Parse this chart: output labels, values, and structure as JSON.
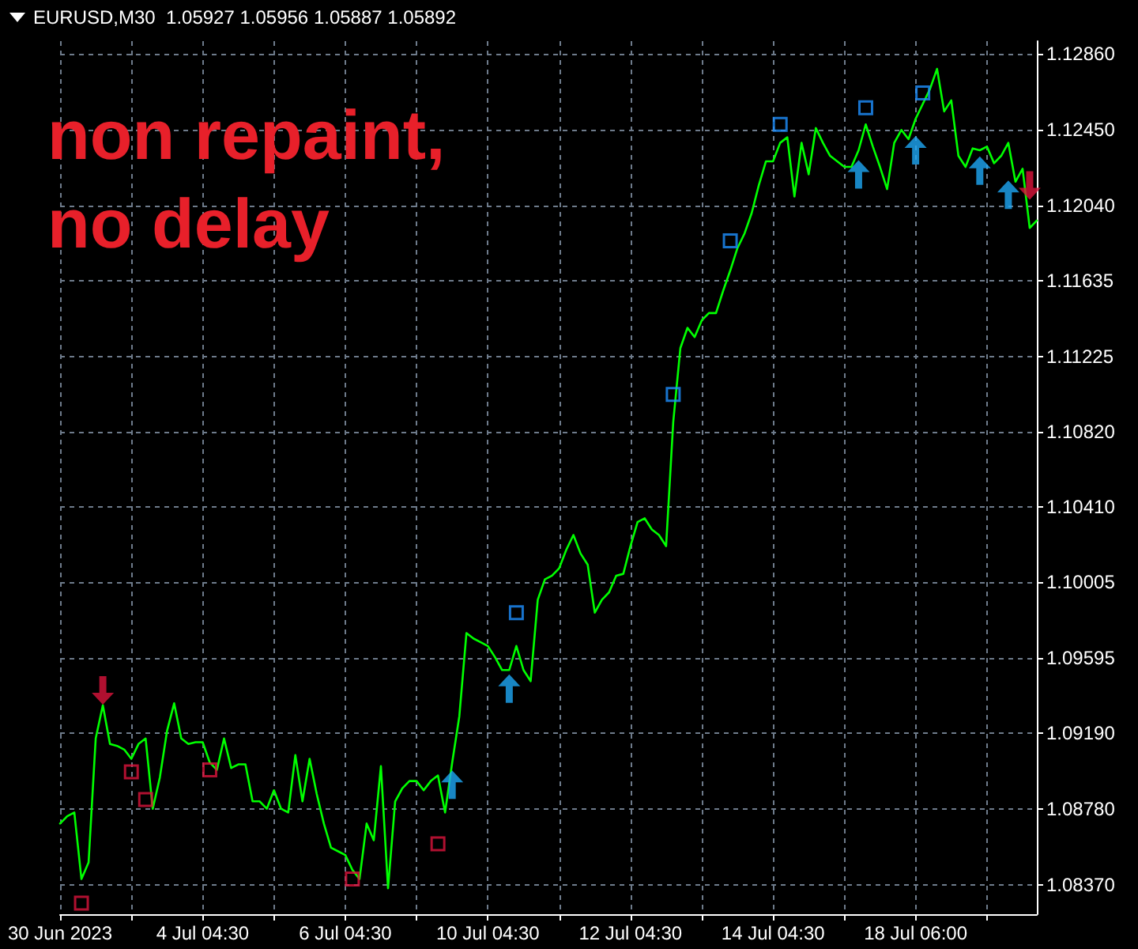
{
  "chart_data": {
    "type": "line",
    "title": "EURUSD,M30  1.05927 1.05956 1.05887 1.05892",
    "annotations": [
      "non repaint, no delay"
    ],
    "categories": [
      "30 Jun 2023",
      null,
      null,
      null,
      null,
      null,
      null,
      null,
      null,
      null,
      null,
      null,
      null,
      null,
      null,
      null,
      null,
      null,
      null,
      null,
      "4 Jul 04:30",
      null,
      null,
      null,
      null,
      null,
      null,
      null,
      null,
      null,
      null,
      null,
      null,
      null,
      null,
      null,
      null,
      null,
      null,
      null,
      "6 Jul 04:30",
      null,
      null,
      null,
      null,
      null,
      null,
      null,
      null,
      null,
      null,
      null,
      null,
      null,
      null,
      null,
      null,
      null,
      null,
      null,
      "10 Jul 04:30",
      null,
      null,
      null,
      null,
      null,
      null,
      null,
      null,
      null,
      null,
      null,
      null,
      null,
      null,
      null,
      null,
      null,
      null,
      null,
      "12 Jul 04:30",
      null,
      null,
      null,
      null,
      null,
      null,
      null,
      null,
      null,
      null,
      null,
      null,
      null,
      null,
      null,
      null,
      null,
      null,
      null,
      "14 Jul 04:30",
      null,
      null,
      null,
      null,
      null,
      null,
      null,
      null,
      null,
      null,
      null,
      null,
      null,
      null,
      null,
      null,
      null,
      null,
      null,
      "18 Jul 06:00",
      null,
      null,
      null,
      null,
      null,
      null,
      null,
      null,
      null,
      null,
      null,
      null,
      null,
      null,
      null,
      null,
      null
    ],
    "ylim": [
      1.0821,
      1.1293
    ],
    "yticks": [
      {
        "value": 1.0837,
        "label": "1.08370"
      },
      {
        "value": 1.0878,
        "label": "1.08780"
      },
      {
        "value": 1.0919,
        "label": "1.09190"
      },
      {
        "value": 1.09595,
        "label": "1.09595"
      },
      {
        "value": 1.10005,
        "label": "1.10005"
      },
      {
        "value": 1.1041,
        "label": "1.10410"
      },
      {
        "value": 1.1082,
        "label": "1.10820"
      },
      {
        "value": 1.11225,
        "label": "1.11225"
      },
      {
        "value": 1.11635,
        "label": "1.11635"
      },
      {
        "value": 1.1204,
        "label": "1.12040"
      },
      {
        "value": 1.1245,
        "label": "1.12450"
      },
      {
        "value": 1.1286,
        "label": "1.12860"
      }
    ],
    "grid": true,
    "series": [
      {
        "marker": "none",
        "color": "#00ff00",
        "values": [
          1.087,
          1.0874,
          1.0876,
          1.084,
          1.0849,
          1.0916,
          1.0934,
          1.0913,
          1.0912,
          1.091,
          1.0905,
          1.0913,
          1.0916,
          1.0878,
          1.0895,
          1.092,
          1.0935,
          1.0916,
          1.0913,
          1.0914,
          1.0914,
          1.0903,
          1.0899,
          1.0916,
          1.09,
          1.0902,
          1.0902,
          1.0882,
          1.0882,
          1.0878,
          1.0888,
          1.0878,
          1.0876,
          1.0907,
          1.0882,
          1.0905,
          1.0886,
          1.087,
          1.0857,
          1.0855,
          1.0853,
          1.0845,
          1.084,
          1.087,
          1.0861,
          1.0901,
          1.0835,
          1.0882,
          1.0889,
          1.0893,
          1.0893,
          1.0888,
          1.0893,
          1.0896,
          1.0876,
          1.0903,
          1.0928,
          1.0973,
          1.097,
          1.0968,
          1.0966,
          1.096,
          1.0953,
          1.0953,
          1.0966,
          1.0953,
          1.0947,
          1.0991,
          1.1002,
          1.1004,
          1.1008,
          1.1018,
          1.1026,
          1.1016,
          1.101,
          1.0984,
          1.0991,
          1.0995,
          1.1004,
          1.1005,
          1.102,
          1.1033,
          1.1035,
          1.1029,
          1.1026,
          1.102,
          1.1087,
          1.1127,
          1.1138,
          1.1133,
          1.1142,
          1.1146,
          1.1146,
          1.1158,
          1.1169,
          1.1181,
          1.1189,
          1.12,
          1.1215,
          1.1228,
          1.1228,
          1.1238,
          1.1241,
          1.1209,
          1.1238,
          1.1221,
          1.1246,
          1.1238,
          1.1231,
          1.1228,
          1.1225,
          1.1225,
          1.1234,
          1.1248,
          1.1236,
          1.1225,
          1.1213,
          1.1238,
          1.1245,
          1.124,
          1.1251,
          1.1259,
          1.1267,
          1.1278,
          1.1255,
          1.1261,
          1.1231,
          1.1225,
          1.1235,
          1.1234,
          1.1236,
          1.1227,
          1.1231,
          1.1238,
          1.1217,
          1.1224,
          1.1192,
          1.1196
        ]
      },
      {
        "type": "scatter",
        "marker": "square",
        "color": "#dc143c",
        "values": [
          null,
          null,
          null,
          1.0827,
          null,
          null,
          null,
          null,
          null,
          null,
          1.0898,
          null,
          1.0883,
          null,
          null,
          null,
          null,
          null,
          null,
          null,
          null,
          1.0899,
          null,
          null,
          null,
          null,
          null,
          null,
          null,
          null,
          null,
          null,
          null,
          null,
          null,
          null,
          null,
          null,
          null,
          null,
          null,
          1.084,
          null,
          null,
          null,
          null,
          null,
          null,
          null,
          null,
          null,
          null,
          null,
          1.0859,
          null,
          null,
          null,
          null,
          null,
          null,
          null,
          null,
          null,
          null,
          null,
          null,
          null,
          null,
          null,
          null,
          null,
          null,
          null,
          null,
          null,
          null,
          null,
          null,
          null,
          null,
          null,
          null,
          null,
          null,
          null,
          null,
          null,
          null,
          null,
          null,
          null,
          null,
          null,
          null,
          null,
          null,
          null,
          null,
          null,
          null,
          null,
          null,
          null,
          null,
          null,
          null,
          null,
          null,
          null,
          null,
          null,
          null,
          null,
          null,
          null,
          null,
          null,
          null,
          null,
          null,
          null,
          null,
          null,
          null,
          null,
          null,
          null,
          null,
          null,
          null,
          null,
          null,
          null,
          null,
          null,
          null,
          null,
          null
        ]
      },
      {
        "type": "scatter",
        "marker": "square",
        "color": "#1e90ff",
        "values": [
          null,
          null,
          null,
          null,
          null,
          null,
          null,
          null,
          null,
          null,
          null,
          null,
          null,
          null,
          null,
          null,
          null,
          null,
          null,
          null,
          null,
          null,
          null,
          null,
          null,
          null,
          null,
          null,
          null,
          null,
          null,
          null,
          null,
          null,
          null,
          null,
          null,
          null,
          null,
          null,
          null,
          null,
          null,
          null,
          null,
          null,
          null,
          null,
          null,
          null,
          null,
          null,
          null,
          null,
          null,
          null,
          null,
          null,
          null,
          null,
          null,
          null,
          null,
          null,
          1.0984,
          null,
          null,
          null,
          null,
          null,
          null,
          null,
          null,
          null,
          null,
          null,
          null,
          null,
          null,
          null,
          null,
          null,
          null,
          null,
          null,
          null,
          1.1102,
          null,
          null,
          null,
          null,
          null,
          null,
          null,
          1.1185,
          null,
          null,
          null,
          null,
          null,
          null,
          1.1248,
          null,
          null,
          null,
          null,
          null,
          null,
          null,
          null,
          null,
          null,
          null,
          1.1257,
          null,
          null,
          null,
          null,
          null,
          null,
          null,
          1.1265,
          null,
          null,
          null,
          null,
          null,
          null,
          null,
          null,
          null,
          null,
          null,
          null,
          null,
          null,
          null,
          null
        ]
      },
      {
        "type": "scatter",
        "marker": "triangle",
        "color": "#1ea8f5",
        "values": [
          null,
          null,
          null,
          null,
          null,
          null,
          null,
          null,
          null,
          null,
          null,
          null,
          null,
          null,
          null,
          null,
          null,
          null,
          null,
          null,
          null,
          null,
          null,
          null,
          null,
          null,
          null,
          null,
          null,
          null,
          null,
          null,
          null,
          null,
          null,
          null,
          null,
          null,
          null,
          null,
          null,
          null,
          null,
          null,
          null,
          null,
          null,
          null,
          null,
          null,
          null,
          null,
          null,
          null,
          null,
          1.0891,
          null,
          null,
          null,
          null,
          null,
          null,
          null,
          1.0943,
          null,
          null,
          null,
          null,
          null,
          null,
          null,
          null,
          null,
          null,
          null,
          null,
          null,
          null,
          null,
          null,
          null,
          null,
          null,
          null,
          null,
          null,
          null,
          null,
          null,
          null,
          null,
          null,
          null,
          null,
          null,
          null,
          null,
          null,
          null,
          null,
          null,
          null,
          null,
          null,
          null,
          null,
          null,
          null,
          null,
          null,
          null,
          null,
          1.1221,
          null,
          null,
          null,
          null,
          null,
          null,
          null,
          1.1234,
          null,
          null,
          null,
          null,
          null,
          null,
          null,
          null,
          1.1223,
          null,
          null,
          null,
          1.121,
          null,
          null,
          null,
          null
        ]
      },
      {
        "type": "scatter",
        "marker": "triangle",
        "color": "#dc143c",
        "values": [
          null,
          null,
          null,
          null,
          null,
          null,
          1.0942,
          null,
          null,
          null,
          null,
          null,
          null,
          null,
          null,
          null,
          null,
          null,
          null,
          null,
          null,
          null,
          null,
          null,
          null,
          null,
          null,
          null,
          null,
          null,
          null,
          null,
          null,
          null,
          null,
          null,
          null,
          null,
          null,
          null,
          null,
          null,
          null,
          null,
          null,
          null,
          null,
          null,
          null,
          null,
          null,
          null,
          null,
          null,
          null,
          null,
          null,
          null,
          null,
          null,
          null,
          null,
          null,
          null,
          null,
          null,
          null,
          null,
          null,
          null,
          null,
          null,
          null,
          null,
          null,
          null,
          null,
          null,
          null,
          null,
          null,
          null,
          null,
          null,
          null,
          null,
          null,
          null,
          null,
          null,
          null,
          null,
          null,
          null,
          null,
          null,
          null,
          null,
          null,
          null,
          null,
          null,
          null,
          null,
          null,
          null,
          null,
          null,
          null,
          null,
          null,
          null,
          null,
          null,
          null,
          null,
          null,
          null,
          null,
          null,
          null,
          null,
          null,
          null,
          null,
          null,
          null,
          null,
          null,
          null,
          null,
          null,
          null,
          null,
          null,
          null,
          1.1215,
          null
        ]
      }
    ]
  }
}
